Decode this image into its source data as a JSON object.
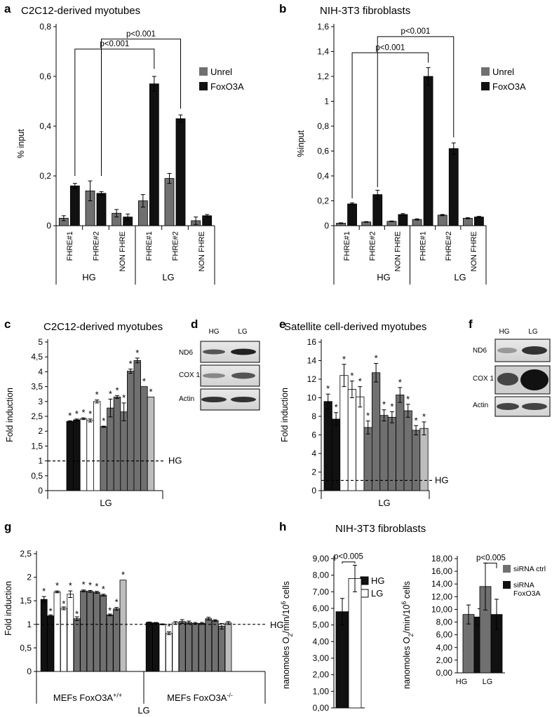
{
  "colors": {
    "dark_gray": "#707070",
    "black": "#111111",
    "white": "#ffffff",
    "light_gray": "#bdbdbd"
  },
  "chart_data": [
    {
      "panel": "a",
      "type": "bar",
      "title": "C2C12-derived myotubes",
      "ylabel": "% input",
      "ylim": [
        0,
        0.8
      ],
      "yticks": [
        "0",
        "0,2",
        "0,4",
        "0,6",
        "0,8"
      ],
      "categories": [
        "FHRE#1",
        "FHRE#2",
        "NON FHRE",
        "FHRE#1",
        "FHRE#2",
        "NON FHRE"
      ],
      "groups": [
        "HG",
        "LG"
      ],
      "series": [
        {
          "name": "Unrel",
          "color": "dark_gray",
          "values": [
            0.03,
            0.14,
            0.05,
            0.1,
            0.19,
            0.02
          ],
          "errors": [
            0.01,
            0.04,
            0.015,
            0.025,
            0.02,
            0.015
          ]
        },
        {
          "name": "FoxO3A",
          "color": "black",
          "values": [
            0.16,
            0.13,
            0.035,
            0.57,
            0.43,
            0.04
          ],
          "errors": [
            0.01,
            0.007,
            0.012,
            0.03,
            0.015,
            0.005
          ]
        }
      ],
      "annotations": [
        "p<0.001",
        "p<0.001"
      ],
      "legend": "right"
    },
    {
      "panel": "b",
      "type": "bar",
      "title": "NIH-3T3 fibroblasts",
      "ylabel": "%input",
      "ylim": [
        0,
        1.6
      ],
      "yticks": [
        "0",
        "0,2",
        "0,4",
        "0,6",
        "0,8",
        "1",
        "1,2",
        "1,4",
        "1,6"
      ],
      "categories": [
        "FHRE#1",
        "FHRE#2",
        "NON FHRE",
        "FHRE#1",
        "FHRE#2",
        "NON FHRE"
      ],
      "groups": [
        "HG",
        "LG"
      ],
      "series": [
        {
          "name": "Unrel",
          "color": "dark_gray",
          "values": [
            0.02,
            0.03,
            0.035,
            0.05,
            0.085,
            0.06
          ],
          "errors": [
            0.003,
            0.003,
            0.003,
            0.005,
            0.005,
            0.004
          ]
        },
        {
          "name": "FoxO3A",
          "color": "black",
          "values": [
            0.175,
            0.25,
            0.09,
            1.2,
            0.62,
            0.07
          ],
          "errors": [
            0.008,
            0.035,
            0.007,
            0.07,
            0.045,
            0.005
          ]
        }
      ],
      "annotations": [
        "p<0.001",
        "p<0.001"
      ],
      "legend": "right"
    },
    {
      "panel": "c",
      "type": "bar",
      "title": "C2C12-derived myotubes",
      "ylabel": "Fold induction",
      "xlabel": "LG",
      "ylim": [
        0,
        5
      ],
      "yticks": [
        "0",
        "0,5",
        "1",
        "1,5",
        "2",
        "2,5",
        "3",
        "3,5",
        "4",
        "4,5",
        "5"
      ],
      "reference_line": {
        "value": 1,
        "label": "HG"
      },
      "bars": [
        {
          "value": 2.33,
          "error": 0.02,
          "color": "black"
        },
        {
          "value": 2.38,
          "error": 0.03,
          "color": "black"
        },
        {
          "value": 2.42,
          "error": 0.03,
          "color": "white"
        },
        {
          "value": 2.36,
          "error": 0.05,
          "color": "white"
        },
        {
          "value": 3.0,
          "error": 0.05,
          "color": "white"
        },
        {
          "value": 2.15,
          "error": 0.02,
          "color": "dark_gray"
        },
        {
          "value": 2.78,
          "error": 0.3,
          "color": "dark_gray"
        },
        {
          "value": 3.15,
          "error": 0.05,
          "color": "dark_gray"
        },
        {
          "value": 2.65,
          "error": 0.3,
          "color": "dark_gray"
        },
        {
          "value": 4.02,
          "error": 0.07,
          "color": "dark_gray"
        },
        {
          "value": 4.38,
          "error": 0.08,
          "color": "dark_gray"
        },
        {
          "value": 3.5,
          "error": 0.0,
          "color": "dark_gray"
        },
        {
          "value": 3.15,
          "error": 0.0,
          "color": "light_gray"
        }
      ],
      "significance": "*"
    },
    {
      "panel": "e",
      "type": "bar",
      "title": "Satellite cell-derived myotubes",
      "ylabel": "Fold induction",
      "xlabel": "LG",
      "ylim": [
        0,
        16
      ],
      "yticks": [
        "0",
        "2",
        "4",
        "6",
        "8",
        "10",
        "12",
        "14",
        "16"
      ],
      "reference_line": {
        "value": 1.1,
        "label": "HG"
      },
      "bars": [
        {
          "value": 9.6,
          "error": 0.8,
          "color": "black"
        },
        {
          "value": 7.7,
          "error": 0.7,
          "color": "black"
        },
        {
          "value": 12.4,
          "error": 1.2,
          "color": "white"
        },
        {
          "value": 10.9,
          "error": 0.9,
          "color": "white"
        },
        {
          "value": 10.1,
          "error": 1.1,
          "color": "white"
        },
        {
          "value": 6.8,
          "error": 0.7,
          "color": "dark_gray"
        },
        {
          "value": 12.7,
          "error": 1.0,
          "color": "dark_gray"
        },
        {
          "value": 8.1,
          "error": 0.6,
          "color": "dark_gray"
        },
        {
          "value": 7.9,
          "error": 0.6,
          "color": "dark_gray"
        },
        {
          "value": 10.3,
          "error": 0.8,
          "color": "dark_gray"
        },
        {
          "value": 8.6,
          "error": 0.7,
          "color": "dark_gray"
        },
        {
          "value": 6.5,
          "error": 0.5,
          "color": "dark_gray"
        },
        {
          "value": 6.7,
          "error": 0.7,
          "color": "light_gray"
        }
      ],
      "significance": "*"
    },
    {
      "panel": "g",
      "type": "bar",
      "ylabel": "Fold induction",
      "xlabel": "LG",
      "ylim": [
        0,
        2.5
      ],
      "yticks": [
        "0",
        "0,5",
        "1",
        "1,5",
        "2",
        "2,5"
      ],
      "reference_line": {
        "value": 1,
        "label": "HG"
      },
      "groups": [
        {
          "label": "MEFs FoxO3A",
          "superscript": "+/+",
          "bars": [
            {
              "value": 1.53,
              "error": 0.06,
              "color": "black",
              "star": true
            },
            {
              "value": 1.18,
              "error": 0.02,
              "color": "black",
              "star": true
            },
            {
              "value": 1.69,
              "error": 0.02,
              "color": "white",
              "star": true
            },
            {
              "value": 1.34,
              "error": 0.03,
              "color": "white",
              "star": true
            },
            {
              "value": 1.64,
              "error": 0.07,
              "color": "white",
              "star": true
            },
            {
              "value": 1.12,
              "error": 0.04,
              "color": "dark_gray",
              "star": true
            },
            {
              "value": 1.71,
              "error": 0.02,
              "color": "dark_gray",
              "star": true
            },
            {
              "value": 1.7,
              "error": 0.02,
              "color": "dark_gray",
              "star": true
            },
            {
              "value": 1.68,
              "error": 0.02,
              "color": "dark_gray",
              "star": true
            },
            {
              "value": 1.62,
              "error": 0.02,
              "color": "dark_gray",
              "star": true
            },
            {
              "value": 1.2,
              "error": 0.02,
              "color": "dark_gray",
              "star": true
            },
            {
              "value": 1.33,
              "error": 0.03,
              "color": "dark_gray",
              "star": true
            },
            {
              "value": 1.94,
              "error": 0.0,
              "color": "light_gray",
              "star": true
            }
          ]
        },
        {
          "label": "MEFs FoxO3A",
          "superscript": "-/-",
          "bars": [
            {
              "value": 1.04,
              "error": 0.01,
              "color": "black",
              "star": false
            },
            {
              "value": 1.03,
              "error": 0.01,
              "color": "black",
              "star": false
            },
            {
              "value": 1.0,
              "error": 0.01,
              "color": "white",
              "star": false
            },
            {
              "value": 0.81,
              "error": 0.03,
              "color": "white",
              "star": true
            },
            {
              "value": 1.03,
              "error": 0.03,
              "color": "white",
              "star": false
            },
            {
              "value": 1.06,
              "error": 0.04,
              "color": "dark_gray",
              "star": false
            },
            {
              "value": 1.04,
              "error": 0.03,
              "color": "dark_gray",
              "star": false
            },
            {
              "value": 1.02,
              "error": 0.02,
              "color": "dark_gray",
              "star": false
            },
            {
              "value": 1.02,
              "error": 0.02,
              "color": "dark_gray",
              "star": false
            },
            {
              "value": 1.12,
              "error": 0.03,
              "color": "dark_gray",
              "star": false
            },
            {
              "value": 1.08,
              "error": 0.02,
              "color": "dark_gray",
              "star": false
            },
            {
              "value": 0.96,
              "error": 0.06,
              "color": "dark_gray",
              "star": false
            },
            {
              "value": 1.03,
              "error": 0.03,
              "color": "light_gray",
              "star": false
            }
          ]
        }
      ]
    },
    {
      "panel": "h1",
      "type": "bar",
      "title": "NIH-3T3 fibroblasts",
      "ylabel": "nanomoles O2/min/10^6 cells",
      "ylim": [
        0,
        9
      ],
      "yticks": [
        "0,00",
        "1,00",
        "2,00",
        "3,00",
        "4,00",
        "5,00",
        "6,00",
        "7,00",
        "8,00",
        "9,00"
      ],
      "series": [
        {
          "name": "HG",
          "color": "black",
          "values": [
            5.8
          ],
          "errors": [
            0.8
          ]
        },
        {
          "name": "LG",
          "color": "white",
          "values": [
            7.8
          ],
          "errors": [
            0.8
          ]
        }
      ],
      "annotations": [
        "p<0.005"
      ],
      "legend": "right"
    },
    {
      "panel": "h2",
      "type": "bar",
      "ylabel": "nanomoles O2/min/10^6 cells",
      "ylim": [
        0,
        18
      ],
      "yticks": [
        "0,00",
        "2,00",
        "4,00",
        "6,00",
        "8,00",
        "10,00",
        "12,00",
        "14,00",
        "16,00",
        "18,00"
      ],
      "categories": [
        "HG",
        "LG"
      ],
      "series": [
        {
          "name": "siRNA ctrl",
          "color": "dark_gray",
          "values": [
            9.2,
            13.6
          ],
          "errors": [
            1.5,
            3.7
          ]
        },
        {
          "name": "siRNA FoxO3A",
          "color": "black",
          "values": [
            8.8,
            9.2
          ],
          "errors": [
            1.3,
            2.4
          ]
        }
      ],
      "annotations": [
        "p<0.005"
      ],
      "legend": "top-right"
    }
  ],
  "panel_labels": [
    "a",
    "b",
    "c",
    "d",
    "e",
    "f",
    "g",
    "h"
  ],
  "blots": {
    "d": {
      "cols": [
        "HG",
        "LG"
      ],
      "rows": [
        "ND6",
        "COX 1",
        "Actin"
      ]
    },
    "f": {
      "cols": [
        "HG",
        "LG"
      ],
      "rows": [
        "ND6",
        "COX 1",
        "Actin"
      ]
    }
  }
}
